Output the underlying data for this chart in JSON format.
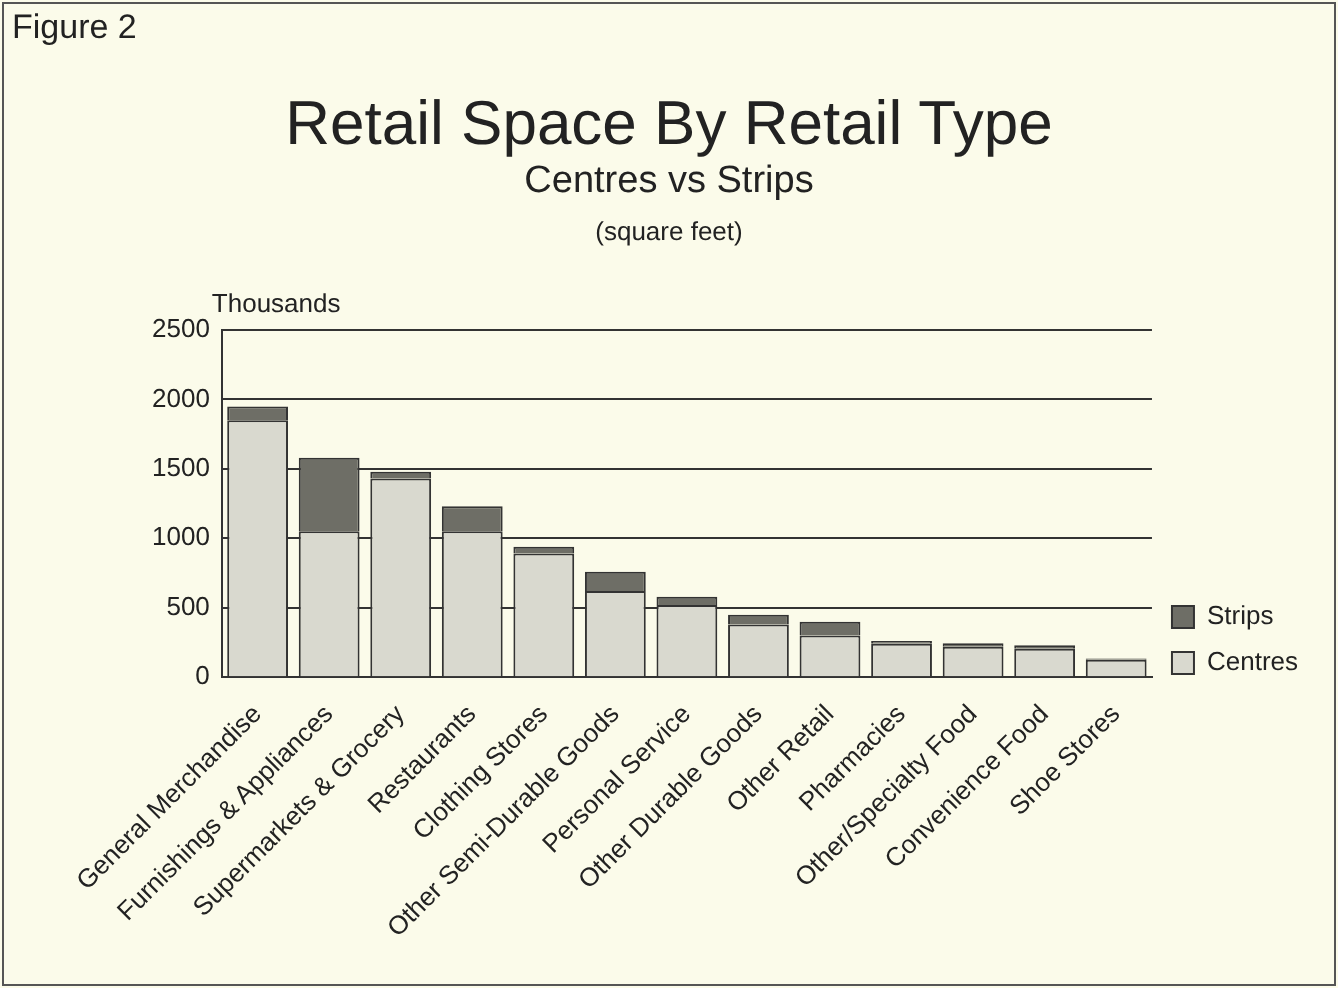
{
  "chart_data": {
    "type": "bar",
    "title": "Retail Space By Retail Type",
    "subtitle": "Centres vs Strips",
    "ylabel": "Thousands",
    "annotations": [
      "Figure 2",
      "(square feet)"
    ],
    "categories": [
      "General Merchandise",
      "Furnishings & Appliances",
      "Supermarkets & Grocery",
      "Restaurants",
      "Clothing Stores",
      "Other Semi-Durable Goods",
      "Personal Service",
      "Other Durable Goods",
      "Other Retail",
      "Pharmacies",
      "Other/Specialty Food",
      "Convenience Food",
      "Shoe Stores"
    ],
    "series": [
      {
        "name": "Centres",
        "color": "#d9d9cf",
        "values": [
          1850,
          1050,
          1430,
          1050,
          890,
          620,
          520,
          380,
          300,
          240,
          220,
          205,
          125
        ]
      },
      {
        "name": "Strips",
        "color": "#6e6e66",
        "values": [
          100,
          530,
          50,
          180,
          50,
          140,
          60,
          70,
          100,
          20,
          25,
          25,
          10
        ]
      }
    ],
    "stacked": true,
    "ylim": [
      0,
      2500
    ],
    "yticks": [
      0,
      500,
      1000,
      1500,
      2000,
      2500
    ],
    "grid": "y",
    "legend": "right"
  }
}
